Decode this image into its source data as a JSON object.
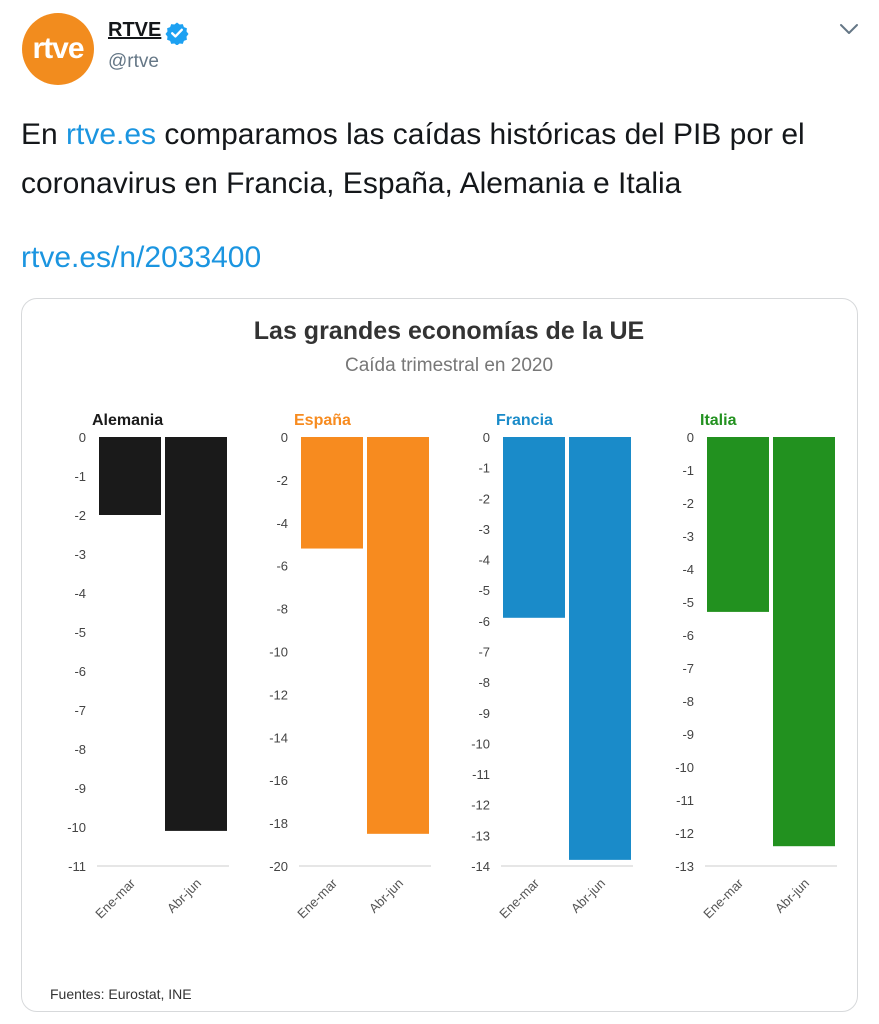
{
  "account": {
    "avatar_text": "rtve",
    "name": "RTVE",
    "handle": "@rtve"
  },
  "tweet": {
    "text_before": "En ",
    "text_link": "rtve.es",
    "text_after": " comparamos las caídas históricas del PIB por el coronavirus en Francia, España, Alemania e Italia",
    "url": "rtve.es/n/2033400"
  },
  "colors": {
    "avatar": "#f28c1e",
    "link": "#1b95e0",
    "verified": "#1da1f2",
    "Alemania": "#1a1a1a",
    "España": "#f78b1f",
    "Francia": "#1a8bc9",
    "Italia": "#22911f"
  },
  "chart_data": {
    "type": "bar",
    "title": "Las grandes economías de la UE",
    "subtitle": "Caída trimestral en 2020",
    "source": "Fuentes: Eurostat, INE",
    "categories": [
      "Ene-mar",
      "Abr-jun"
    ],
    "panels": [
      {
        "name": "Alemania",
        "values": [
          -2.0,
          -10.1
        ],
        "ylim": [
          -11,
          0
        ],
        "ticks": [
          "0",
          "-1",
          "-2",
          "-3",
          "-4",
          "-5",
          "-6",
          "-7",
          "-8",
          "-9",
          "-10",
          "-11"
        ]
      },
      {
        "name": "España",
        "values": [
          -5.2,
          -18.5
        ],
        "ylim": [
          -20,
          0
        ],
        "ticks": [
          "0",
          "-2",
          "-4",
          "-6",
          "-8",
          "-10",
          "-12",
          "-14",
          "-16",
          "-18",
          "-20"
        ]
      },
      {
        "name": "Francia",
        "values": [
          -5.9,
          -13.8
        ],
        "ylim": [
          -14,
          0
        ],
        "ticks": [
          "0",
          "-1",
          "-2",
          "-3",
          "-4",
          "-5",
          "-6",
          "-7",
          "-8",
          "-9",
          "-10",
          "-11",
          "-12",
          "-13",
          "-14"
        ]
      },
      {
        "name": "Italia",
        "values": [
          -5.3,
          -12.4
        ],
        "ylim": [
          -13,
          0
        ],
        "ticks": [
          "0",
          "-1",
          "-2",
          "-3",
          "-4",
          "-5",
          "-6",
          "-7",
          "-8",
          "-9",
          "-10",
          "-11",
          "-12",
          "-13"
        ]
      }
    ]
  }
}
